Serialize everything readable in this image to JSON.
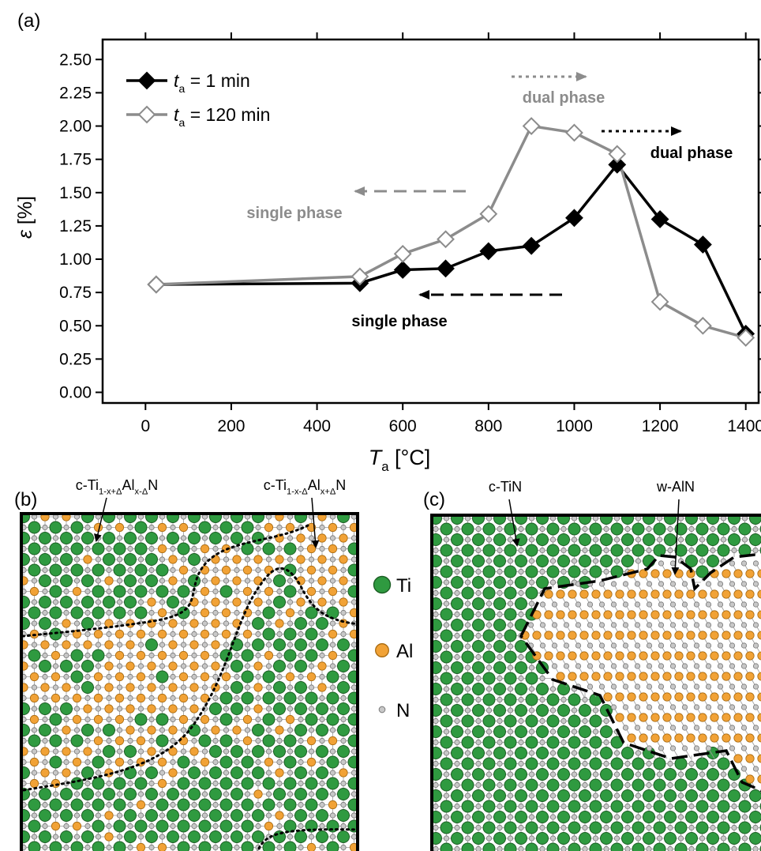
{
  "chart_data": {
    "type": "line",
    "panel_label": "(a)",
    "x": [
      25,
      500,
      600,
      700,
      800,
      900,
      1000,
      1100,
      1200,
      1300,
      1400
    ],
    "series": [
      {
        "name": {
          "symbol": "t",
          "sub": "a",
          "text": " = 1 min"
        },
        "color": "#000000",
        "marker": "filled-diamond",
        "values": [
          0.81,
          0.82,
          0.92,
          0.93,
          1.06,
          1.1,
          1.31,
          1.71,
          1.3,
          1.11,
          0.44
        ]
      },
      {
        "name": {
          "symbol": "t",
          "sub": "a",
          "text": " = 120 min"
        },
        "color": "#8c8c8c",
        "marker": "open-diamond",
        "values": [
          0.81,
          0.87,
          1.04,
          1.15,
          1.34,
          2.0,
          1.95,
          1.79,
          0.68,
          0.5,
          0.41
        ]
      }
    ],
    "xlim": [
      -100,
      1430
    ],
    "ylim": [
      -0.08,
      2.65
    ],
    "xticks": [
      0,
      200,
      400,
      600,
      800,
      1000,
      1200,
      1400
    ],
    "yticks": [
      {
        "value": 0,
        "label": "0.00"
      },
      {
        "value": 0.25,
        "label": "0.25"
      },
      {
        "value": 0.5,
        "label": "0.50"
      },
      {
        "value": 0.75,
        "label": "0.75"
      },
      {
        "value": 1,
        "label": "1.00"
      },
      {
        "value": 1.25,
        "label": "1.25"
      },
      {
        "value": 1.5,
        "label": "1.50"
      },
      {
        "value": 1.75,
        "label": "1.75"
      },
      {
        "value": 2,
        "label": "2.00"
      },
      {
        "value": 2.25,
        "label": "2.25"
      },
      {
        "value": 2.5,
        "label": "2.50"
      }
    ],
    "xlabel": {
      "symbol": "T",
      "sub": "a",
      "text": " [°C]"
    },
    "ylabel": {
      "symbol": "ε",
      "text": " [%]"
    },
    "annotations": [
      {
        "text": "single phase",
        "color": "#8c8c8c"
      },
      {
        "text": "dual phase",
        "color": "#8c8c8c"
      },
      {
        "text": "dual phase",
        "color": "#000000"
      },
      {
        "text": "single phase",
        "color": "#000000"
      }
    ]
  },
  "diagram_b": {
    "panel_label": "(b)",
    "labels": [
      {
        "prefix": "c-Ti",
        "sub1": "1-x+Δ",
        "mid": "Al",
        "sub2": "x-Δ",
        "suffix": "N"
      },
      {
        "prefix": "c-Ti",
        "sub1": "1-x-Δ",
        "mid": "Al",
        "sub2": "x+Δ",
        "suffix": "N"
      }
    ],
    "legend": [
      "Ti",
      "Al",
      "N"
    ]
  },
  "diagram_c": {
    "panel_label": "(c)",
    "labels": [
      "c-TiN",
      "w-AlN"
    ]
  }
}
